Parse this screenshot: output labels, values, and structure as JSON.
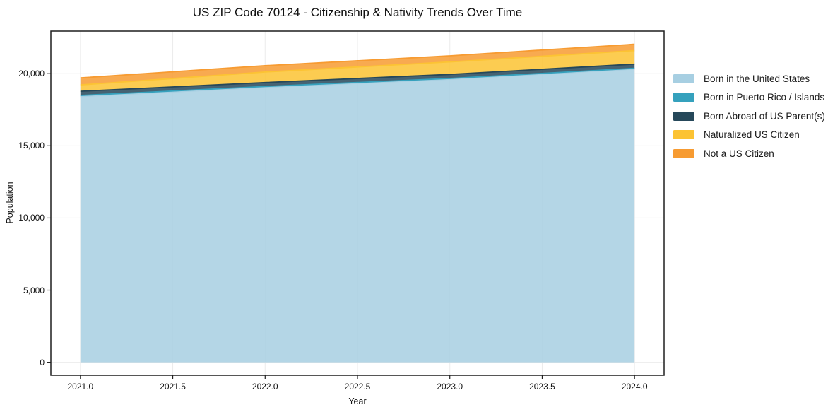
{
  "chart_data": {
    "type": "area",
    "stacked": true,
    "title": "US ZIP Code 70124 - Citizenship & Nativity Trends Over Time",
    "xlabel": "Year",
    "ylabel": "Population",
    "x": [
      2021,
      2022,
      2023,
      2024
    ],
    "series": [
      {
        "name": "Born in the United States",
        "color": "#a7cfe2",
        "values": [
          18420,
          19050,
          19615,
          20320
        ]
      },
      {
        "name": "Born in Puerto Rico / Islands",
        "color": "#35a1bd",
        "values": [
          70,
          60,
          55,
          50
        ]
      },
      {
        "name": "Born Abroad of US Parent(s)",
        "color": "#26485a",
        "values": [
          290,
          275,
          280,
          290
        ]
      },
      {
        "name": "Naturalized US Citizen",
        "color": "#fcc333",
        "values": [
          440,
          730,
          865,
          940
        ]
      },
      {
        "name": "Not a US Citizen",
        "color": "#f79b31",
        "values": [
          490,
          440,
          420,
          440
        ]
      }
    ],
    "x_ticks": [
      {
        "value": 2021.0,
        "label": "2021.0"
      },
      {
        "value": 2021.5,
        "label": "2021.5"
      },
      {
        "value": 2022.0,
        "label": "2022.0"
      },
      {
        "value": 2022.5,
        "label": "2022.5"
      },
      {
        "value": 2023.0,
        "label": "2023.0"
      },
      {
        "value": 2023.5,
        "label": "2023.5"
      },
      {
        "value": 2024.0,
        "label": "2024.0"
      }
    ],
    "y_ticks": [
      {
        "value": 0,
        "label": "0"
      },
      {
        "value": 5000,
        "label": "5,000"
      },
      {
        "value": 10000,
        "label": "10,000"
      },
      {
        "value": 15000,
        "label": "15,000"
      },
      {
        "value": 20000,
        "label": "20,000"
      }
    ],
    "xlim": [
      2020.84,
      2024.16
    ],
    "ylim": [
      -900,
      22950
    ],
    "grid": true,
    "legend_position": "right of plot",
    "fill_alpha": 0.85,
    "grid_color": "#ebebeb",
    "spine_color": "#1f1f1f"
  }
}
